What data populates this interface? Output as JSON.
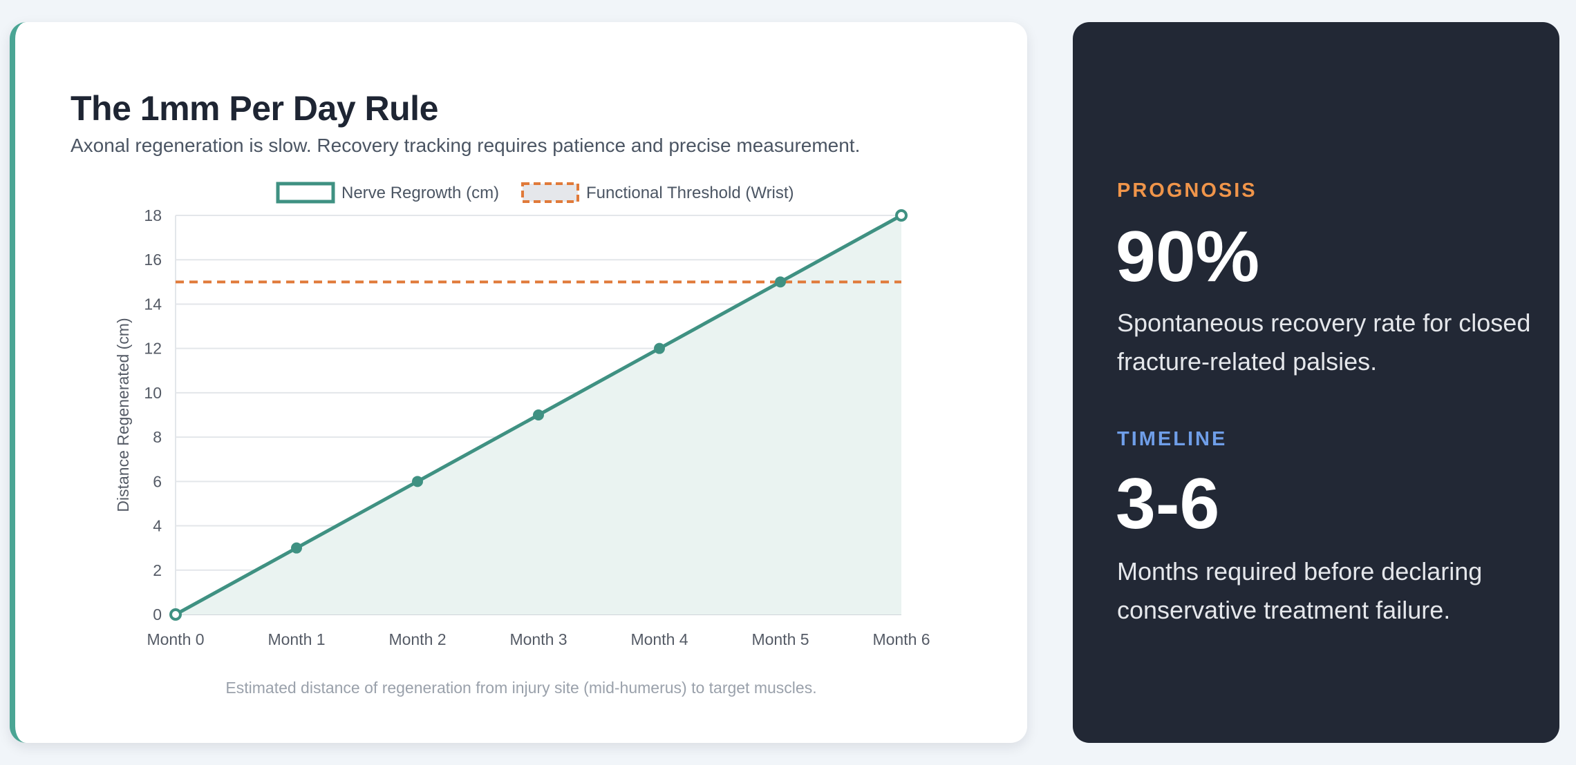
{
  "card": {
    "title": "The 1mm Per Day Rule",
    "subtitle": "Axonal regeneration is slow. Recovery tracking requires patience and precise measurement."
  },
  "chart_data": {
    "type": "line",
    "categories": [
      "Month 0",
      "Month 1",
      "Month 2",
      "Month 3",
      "Month 4",
      "Month 5",
      "Month 6"
    ],
    "series": [
      {
        "name": "Nerve Regrowth (cm)",
        "values": [
          0,
          3,
          6,
          9,
          12,
          15,
          18
        ],
        "color": "#3f9182",
        "fill": "#eaf3f1"
      },
      {
        "name": "Functional Threshold (Wrist)",
        "values": [
          15,
          15,
          15,
          15,
          15,
          15,
          15
        ],
        "color": "#e07a3a",
        "dashed": true
      }
    ],
    "ylabel": "Distance Regenerated (cm)",
    "xlabel": "",
    "ylim": [
      0,
      18
    ],
    "yticks": [
      0,
      2,
      4,
      6,
      8,
      10,
      12,
      14,
      16,
      18
    ],
    "grid": true,
    "legend": "top",
    "caption": "Estimated distance of regeneration from injury site (mid-humerus) to target muscles."
  },
  "stats": {
    "prognosis": {
      "label": "PROGNOSIS",
      "value": "90%",
      "description": "Spontaneous recovery rate for closed fracture-related palsies.",
      "color": "#f0954a"
    },
    "timeline": {
      "label": "TIMELINE",
      "value": "3-6",
      "description": "Months required before declaring conservative treatment failure.",
      "color": "#6f9ee8"
    }
  }
}
